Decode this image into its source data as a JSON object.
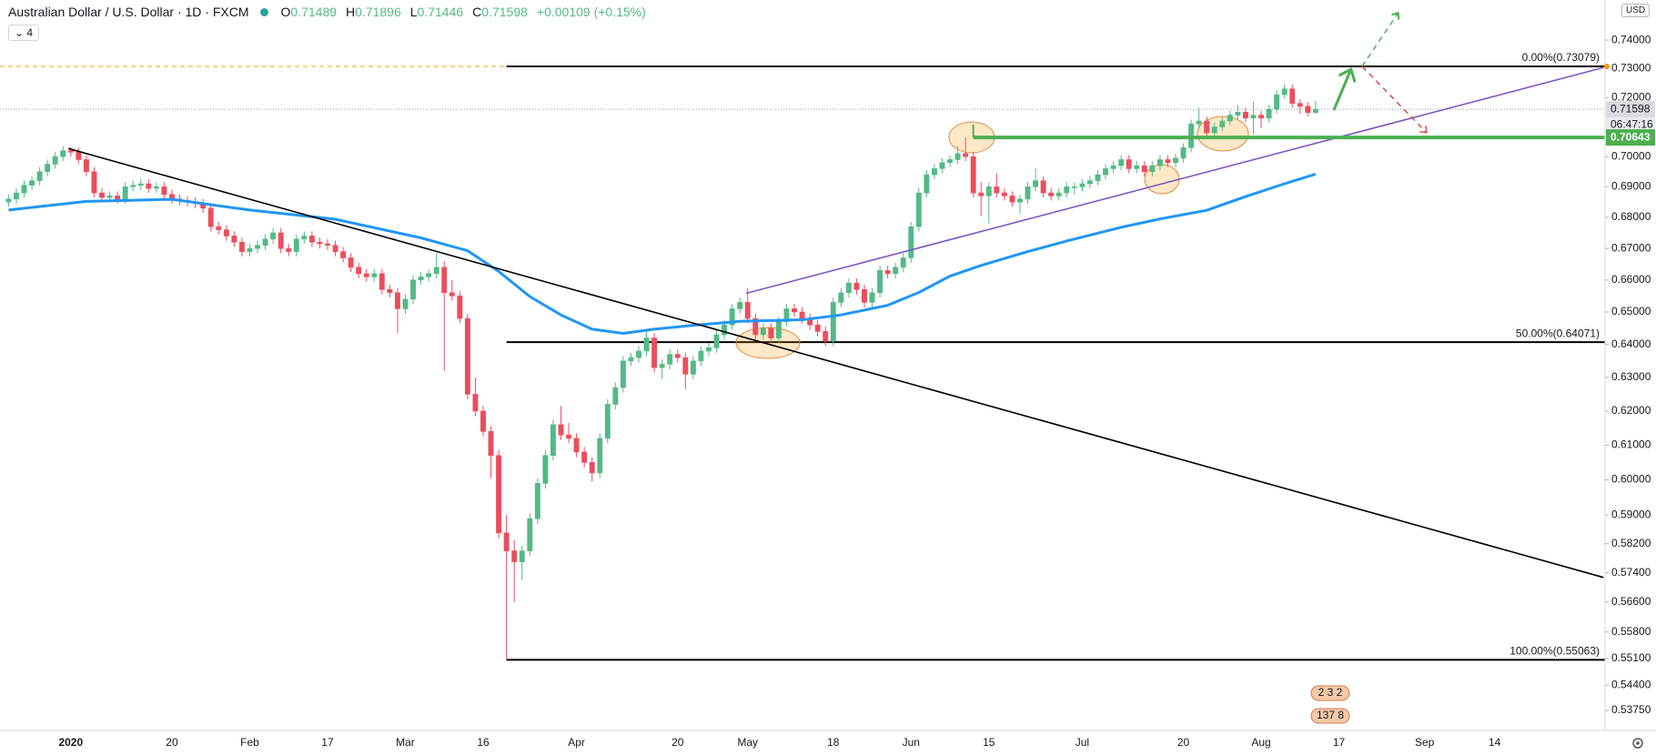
{
  "header": {
    "symbol": "Australian Dollar / U.S. Dollar · 1D · FXCM",
    "ohlc_labels": [
      "O",
      "H",
      "L",
      "C"
    ],
    "change": "+0.00109 (+0.15%)",
    "indicators": "4",
    "currency": "USD",
    "countdown": "06:47:16",
    "events": [
      "2 3 2",
      "137 8"
    ]
  },
  "chart_data": {
    "type": "candlestick",
    "log_scale": true,
    "grid": false,
    "up_color": "#53b987",
    "down_color": "#eb4d5c",
    "xlim": [
      -1.1,
      205.2
    ],
    "ylim": [
      0.5324,
      0.7543
    ],
    "yticks": [
      {
        "value": 0.74,
        "label": "0.74000"
      },
      {
        "value": 0.73,
        "label": "0.73000"
      },
      {
        "value": 0.72,
        "label": "0.72000"
      },
      {
        "value": 0.7,
        "label": "0.70000"
      },
      {
        "value": 0.69,
        "label": "0.69000"
      },
      {
        "value": 0.68,
        "label": "0.68000"
      },
      {
        "value": 0.67,
        "label": "0.67000"
      },
      {
        "value": 0.66,
        "label": "0.66000"
      },
      {
        "value": 0.65,
        "label": "0.65000"
      },
      {
        "value": 0.64,
        "label": "0.64000"
      },
      {
        "value": 0.63,
        "label": "0.63000"
      },
      {
        "value": 0.62,
        "label": "0.62000"
      },
      {
        "value": 0.61,
        "label": "0.61000"
      },
      {
        "value": 0.6,
        "label": "0.60000"
      },
      {
        "value": 0.59,
        "label": "0.59000"
      },
      {
        "value": 0.582,
        "label": "0.58200"
      },
      {
        "value": 0.574,
        "label": "0.57400"
      },
      {
        "value": 0.566,
        "label": "0.56600"
      },
      {
        "value": 0.558,
        "label": "0.55800"
      },
      {
        "value": 0.551,
        "label": "0.55100"
      },
      {
        "value": 0.544,
        "label": "0.54400"
      },
      {
        "value": 0.5375,
        "label": "0.53750"
      }
    ],
    "xticks": [
      {
        "value": 8,
        "label": "2020"
      },
      {
        "value": 21,
        "label": "20"
      },
      {
        "value": 31,
        "label": "Feb"
      },
      {
        "value": 41,
        "label": "17"
      },
      {
        "value": 51,
        "label": "Mar"
      },
      {
        "value": 61,
        "label": "16"
      },
      {
        "value": 73,
        "label": "Apr"
      },
      {
        "value": 86,
        "label": "20"
      },
      {
        "value": 95,
        "label": "May"
      },
      {
        "value": 106,
        "label": "18"
      },
      {
        "value": 116,
        "label": "Jun"
      },
      {
        "value": 126,
        "label": "15"
      },
      {
        "value": 138,
        "label": "Jul"
      },
      {
        "value": 151,
        "label": "20"
      },
      {
        "value": 161,
        "label": "Aug"
      },
      {
        "value": 171,
        "label": "17"
      },
      {
        "value": 182,
        "label": "Sep"
      },
      {
        "value": 191,
        "label": "14"
      }
    ],
    "candles": [
      [
        0.685,
        0.6875,
        0.6835,
        0.686
      ],
      [
        0.686,
        0.6895,
        0.6845,
        0.688
      ],
      [
        0.688,
        0.692,
        0.6865,
        0.6905
      ],
      [
        0.6905,
        0.6935,
        0.689,
        0.692
      ],
      [
        0.692,
        0.6965,
        0.6905,
        0.695
      ],
      [
        0.695,
        0.699,
        0.6935,
        0.6975
      ],
      [
        0.6975,
        0.7015,
        0.696,
        0.7
      ],
      [
        0.7,
        0.7035,
        0.6985,
        0.702
      ],
      [
        0.702,
        0.7032,
        0.7,
        0.7015
      ],
      [
        0.7015,
        0.703,
        0.6975,
        0.699
      ],
      [
        0.699,
        0.7005,
        0.6935,
        0.695
      ],
      [
        0.695,
        0.6965,
        0.6865,
        0.688
      ],
      [
        0.688,
        0.6895,
        0.685,
        0.6865
      ],
      [
        0.6865,
        0.6885,
        0.685,
        0.687
      ],
      [
        0.687,
        0.6885,
        0.6845,
        0.686
      ],
      [
        0.686,
        0.6915,
        0.6845,
        0.69
      ],
      [
        0.69,
        0.692,
        0.6885,
        0.6905
      ],
      [
        0.6905,
        0.6925,
        0.689,
        0.691
      ],
      [
        0.691,
        0.6925,
        0.688,
        0.6895
      ],
      [
        0.6895,
        0.6915,
        0.688,
        0.69
      ],
      [
        0.69,
        0.6915,
        0.686,
        0.6875
      ],
      [
        0.6875,
        0.689,
        0.6845,
        0.686
      ],
      [
        0.686,
        0.6875,
        0.684,
        0.6855
      ],
      [
        0.6855,
        0.687,
        0.6835,
        0.685
      ],
      [
        0.685,
        0.6865,
        0.683,
        0.6845
      ],
      [
        0.6845,
        0.686,
        0.6815,
        0.683
      ],
      [
        0.683,
        0.6845,
        0.6755,
        0.677
      ],
      [
        0.677,
        0.6785,
        0.6745,
        0.676
      ],
      [
        0.676,
        0.6775,
        0.6725,
        0.674
      ],
      [
        0.674,
        0.6755,
        0.6705,
        0.672
      ],
      [
        0.672,
        0.6735,
        0.6675,
        0.669
      ],
      [
        0.669,
        0.6715,
        0.6675,
        0.67
      ],
      [
        0.67,
        0.6725,
        0.6685,
        0.671
      ],
      [
        0.671,
        0.6745,
        0.6695,
        0.673
      ],
      [
        0.673,
        0.6765,
        0.6715,
        0.675
      ],
      [
        0.675,
        0.6765,
        0.6685,
        0.67
      ],
      [
        0.67,
        0.6715,
        0.6675,
        0.669
      ],
      [
        0.669,
        0.6745,
        0.6675,
        0.673
      ],
      [
        0.673,
        0.6755,
        0.6715,
        0.674
      ],
      [
        0.674,
        0.6755,
        0.6705,
        0.672
      ],
      [
        0.672,
        0.6735,
        0.67,
        0.6715
      ],
      [
        0.6715,
        0.673,
        0.6695,
        0.671
      ],
      [
        0.671,
        0.6725,
        0.6675,
        0.669
      ],
      [
        0.669,
        0.6705,
        0.6655,
        0.667
      ],
      [
        0.667,
        0.6685,
        0.6625,
        0.664
      ],
      [
        0.664,
        0.6655,
        0.6605,
        0.662
      ],
      [
        0.662,
        0.6635,
        0.6595,
        0.661
      ],
      [
        0.661,
        0.6635,
        0.6595,
        0.662
      ],
      [
        0.662,
        0.6635,
        0.6555,
        0.657
      ],
      [
        0.657,
        0.6585,
        0.6545,
        0.656
      ],
      [
        0.656,
        0.6575,
        0.6435,
        0.651
      ],
      [
        0.651,
        0.6555,
        0.6495,
        0.654
      ],
      [
        0.654,
        0.6615,
        0.6525,
        0.66
      ],
      [
        0.66,
        0.6625,
        0.6585,
        0.661
      ],
      [
        0.661,
        0.6635,
        0.6595,
        0.662
      ],
      [
        0.662,
        0.6685,
        0.6605,
        0.664
      ],
      [
        0.664,
        0.666,
        0.632,
        0.656
      ],
      [
        0.656,
        0.66,
        0.6535,
        0.655
      ],
      [
        0.655,
        0.6565,
        0.6465,
        0.648
      ],
      [
        0.648,
        0.6495,
        0.6235,
        0.625
      ],
      [
        0.625,
        0.63,
        0.6185,
        0.62
      ],
      [
        0.62,
        0.6215,
        0.6125,
        0.614
      ],
      [
        0.614,
        0.6155,
        0.6005,
        0.607
      ],
      [
        0.607,
        0.6085,
        0.5835,
        0.585
      ],
      [
        0.585,
        0.59,
        0.5506,
        0.58
      ],
      [
        0.58,
        0.583,
        0.566,
        0.577
      ],
      [
        0.577,
        0.5815,
        0.572,
        0.58
      ],
      [
        0.58,
        0.5905,
        0.5785,
        0.589
      ],
      [
        0.589,
        0.6005,
        0.5875,
        0.599
      ],
      [
        0.599,
        0.6085,
        0.5975,
        0.607
      ],
      [
        0.607,
        0.6175,
        0.6055,
        0.616
      ],
      [
        0.616,
        0.6215,
        0.6115,
        0.613
      ],
      [
        0.613,
        0.6165,
        0.6105,
        0.612
      ],
      [
        0.612,
        0.6135,
        0.6065,
        0.608
      ],
      [
        0.608,
        0.6095,
        0.6035,
        0.605
      ],
      [
        0.605,
        0.6065,
        0.5995,
        0.602
      ],
      [
        0.602,
        0.6135,
        0.6005,
        0.612
      ],
      [
        0.612,
        0.6235,
        0.6105,
        0.622
      ],
      [
        0.622,
        0.6285,
        0.6205,
        0.627
      ],
      [
        0.627,
        0.6365,
        0.6255,
        0.635
      ],
      [
        0.635,
        0.6375,
        0.6335,
        0.636
      ],
      [
        0.636,
        0.6395,
        0.6345,
        0.638
      ],
      [
        0.638,
        0.6445,
        0.6365,
        0.642
      ],
      [
        0.642,
        0.6435,
        0.6315,
        0.633
      ],
      [
        0.633,
        0.6355,
        0.6295,
        0.634
      ],
      [
        0.634,
        0.6385,
        0.6325,
        0.637
      ],
      [
        0.637,
        0.6385,
        0.6345,
        0.636
      ],
      [
        0.636,
        0.6375,
        0.6265,
        0.631
      ],
      [
        0.631,
        0.6365,
        0.6295,
        0.635
      ],
      [
        0.635,
        0.6395,
        0.6335,
        0.638
      ],
      [
        0.638,
        0.6405,
        0.6365,
        0.639
      ],
      [
        0.639,
        0.6445,
        0.6375,
        0.643
      ],
      [
        0.643,
        0.6475,
        0.6415,
        0.646
      ],
      [
        0.646,
        0.6525,
        0.6445,
        0.651
      ],
      [
        0.651,
        0.6545,
        0.6495,
        0.653
      ],
      [
        0.653,
        0.6575,
        0.6465,
        0.648
      ],
      [
        0.648,
        0.6495,
        0.6415,
        0.643
      ],
      [
        0.643,
        0.6465,
        0.6415,
        0.645
      ],
      [
        0.645,
        0.6465,
        0.6405,
        0.642
      ],
      [
        0.642,
        0.6485,
        0.6405,
        0.647
      ],
      [
        0.647,
        0.6525,
        0.6455,
        0.651
      ],
      [
        0.651,
        0.6525,
        0.6485,
        0.65
      ],
      [
        0.65,
        0.6515,
        0.6465,
        0.648
      ],
      [
        0.648,
        0.6495,
        0.6445,
        0.646
      ],
      [
        0.646,
        0.6475,
        0.6425,
        0.644
      ],
      [
        0.644,
        0.6455,
        0.6395,
        0.641
      ],
      [
        0.641,
        0.6545,
        0.6395,
        0.653
      ],
      [
        0.653,
        0.6575,
        0.6515,
        0.656
      ],
      [
        0.656,
        0.6605,
        0.6545,
        0.659
      ],
      [
        0.659,
        0.6605,
        0.6555,
        0.657
      ],
      [
        0.657,
        0.6585,
        0.6515,
        0.653
      ],
      [
        0.653,
        0.6575,
        0.6515,
        0.656
      ],
      [
        0.656,
        0.6645,
        0.6545,
        0.663
      ],
      [
        0.663,
        0.6645,
        0.6605,
        0.662
      ],
      [
        0.662,
        0.6655,
        0.6605,
        0.664
      ],
      [
        0.664,
        0.6685,
        0.6625,
        0.667
      ],
      [
        0.667,
        0.6785,
        0.6655,
        0.677
      ],
      [
        0.677,
        0.6895,
        0.6755,
        0.688
      ],
      [
        0.688,
        0.6955,
        0.6865,
        0.694
      ],
      [
        0.694,
        0.6975,
        0.6925,
        0.696
      ],
      [
        0.696,
        0.6995,
        0.6945,
        0.698
      ],
      [
        0.698,
        0.7005,
        0.6965,
        0.699
      ],
      [
        0.699,
        0.7035,
        0.6975,
        0.701
      ],
      [
        0.701,
        0.7065,
        0.6985,
        0.7
      ],
      [
        0.7,
        0.7015,
        0.6865,
        0.688
      ],
      [
        0.688,
        0.6915,
        0.6805,
        0.687
      ],
      [
        0.687,
        0.6915,
        0.678,
        0.69
      ],
      [
        0.69,
        0.6945,
        0.6865,
        0.688
      ],
      [
        0.688,
        0.6895,
        0.6855,
        0.687
      ],
      [
        0.687,
        0.6885,
        0.6835,
        0.685
      ],
      [
        0.685,
        0.6875,
        0.681,
        0.686
      ],
      [
        0.686,
        0.6915,
        0.6845,
        0.69
      ],
      [
        0.69,
        0.696,
        0.6885,
        0.692
      ],
      [
        0.692,
        0.6935,
        0.6865,
        0.688
      ],
      [
        0.688,
        0.6895,
        0.6855,
        0.687
      ],
      [
        0.687,
        0.6895,
        0.6855,
        0.688
      ],
      [
        0.688,
        0.6915,
        0.6865,
        0.69
      ],
      [
        0.69,
        0.6915,
        0.6875,
        0.69
      ],
      [
        0.69,
        0.6925,
        0.6885,
        0.691
      ],
      [
        0.691,
        0.6935,
        0.6895,
        0.692
      ],
      [
        0.692,
        0.6955,
        0.6905,
        0.694
      ],
      [
        0.694,
        0.6975,
        0.6925,
        0.696
      ],
      [
        0.696,
        0.6985,
        0.6945,
        0.697
      ],
      [
        0.697,
        0.7005,
        0.6955,
        0.699
      ],
      [
        0.699,
        0.7005,
        0.6945,
        0.696
      ],
      [
        0.696,
        0.6985,
        0.6945,
        0.697
      ],
      [
        0.697,
        0.6985,
        0.6935,
        0.695
      ],
      [
        0.695,
        0.6985,
        0.6935,
        0.697
      ],
      [
        0.697,
        0.7005,
        0.6955,
        0.699
      ],
      [
        0.699,
        0.7005,
        0.6965,
        0.698
      ],
      [
        0.698,
        0.701,
        0.6965,
        0.6995
      ],
      [
        0.6995,
        0.7045,
        0.698,
        0.703
      ],
      [
        0.703,
        0.7125,
        0.7015,
        0.711
      ],
      [
        0.711,
        0.7165,
        0.7095,
        0.712
      ],
      [
        0.712,
        0.7135,
        0.7065,
        0.708
      ],
      [
        0.708,
        0.7115,
        0.7065,
        0.71
      ],
      [
        0.71,
        0.7135,
        0.7085,
        0.712
      ],
      [
        0.712,
        0.7155,
        0.7105,
        0.714
      ],
      [
        0.714,
        0.7175,
        0.7125,
        0.715
      ],
      [
        0.715,
        0.7165,
        0.7115,
        0.713
      ],
      [
        0.713,
        0.7185,
        0.7075,
        0.714
      ],
      [
        0.714,
        0.7155,
        0.7095,
        0.713
      ],
      [
        0.713,
        0.7175,
        0.7115,
        0.716
      ],
      [
        0.716,
        0.7225,
        0.7145,
        0.721
      ],
      [
        0.721,
        0.7245,
        0.7195,
        0.723
      ],
      [
        0.723,
        0.7245,
        0.7165,
        0.718
      ],
      [
        0.718,
        0.7195,
        0.7145,
        0.717
      ],
      [
        0.717,
        0.7185,
        0.7135,
        0.71489
      ],
      [
        0.71489,
        0.71896,
        0.71446,
        0.71598
      ]
    ],
    "moving_average": {
      "color": "#2196f3",
      "x": [
        0,
        10,
        21,
        31,
        42,
        53,
        59,
        63,
        67,
        71,
        75,
        79,
        83,
        88,
        94,
        102,
        107,
        113,
        117,
        121,
        125,
        131,
        136,
        143,
        148,
        154,
        159,
        164,
        168
      ],
      "values": [
        0.6824,
        0.6852,
        0.6859,
        0.6824,
        0.6794,
        0.6734,
        0.6693,
        0.6627,
        0.6548,
        0.6491,
        0.6447,
        0.6434,
        0.6447,
        0.6459,
        0.6471,
        0.6476,
        0.6491,
        0.6521,
        0.6561,
        0.6612,
        0.6646,
        0.669,
        0.6724,
        0.6768,
        0.6795,
        0.6823,
        0.6868,
        0.691,
        0.6942
      ]
    },
    "trendlines": [
      {
        "color": "#000000",
        "points": [
          [
            7.7,
            0.7027
          ],
          [
            205,
            0.5727
          ]
        ]
      },
      {
        "color": "#7e57c2",
        "points": [
          [
            94.8,
            0.6558
          ],
          [
            205,
            0.7304
          ]
        ]
      }
    ],
    "fibonacci": {
      "start": 64,
      "color": "#000000",
      "alert_color": "#ff9800",
      "levels": [
        {
          "value": 0.73079,
          "label": "0.00%(0.73079)"
        },
        {
          "value": 0.64071,
          "label": "50.00%(0.64071)"
        },
        {
          "value": 0.55063,
          "label": "100.00%(0.55063)"
        }
      ]
    },
    "support": {
      "value": 0.70643,
      "start": 124,
      "color": "#4caf50"
    }
  }
}
